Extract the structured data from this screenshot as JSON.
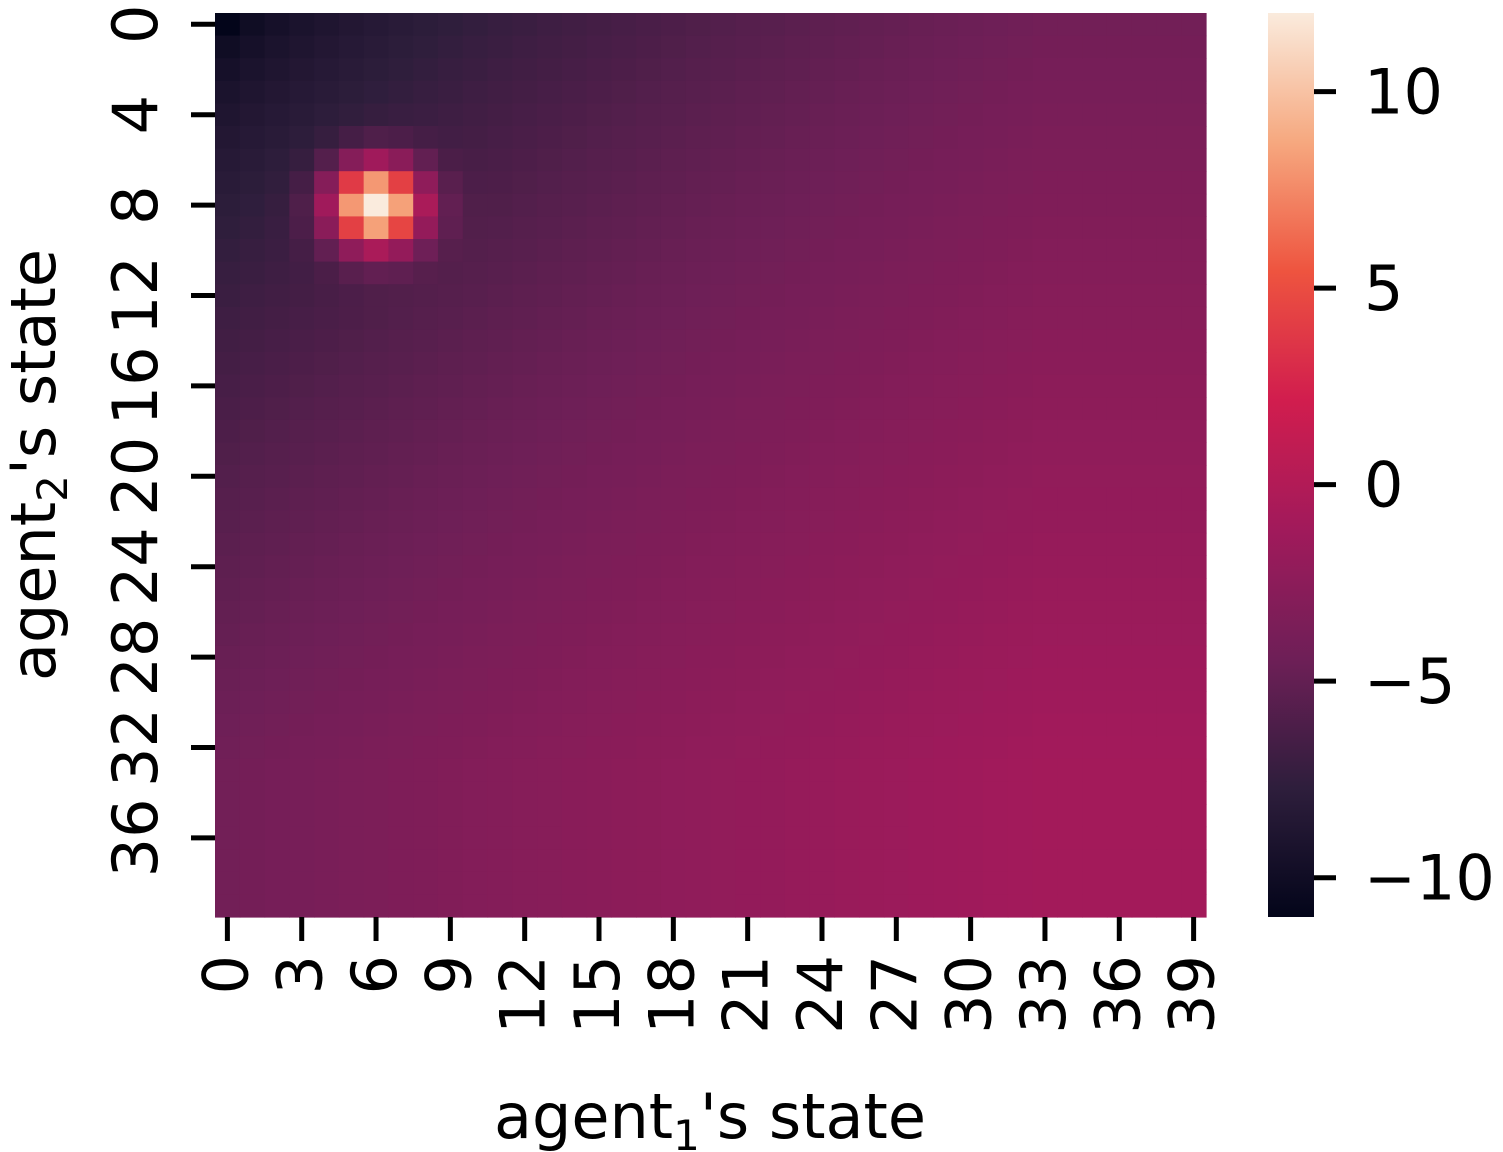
{
  "chart_data": {
    "type": "heatmap",
    "title": "",
    "xlabel": {
      "prefix": "agent",
      "subscript": "1",
      "suffix": "'s state"
    },
    "ylabel": {
      "prefix": "agent",
      "subscript": "2",
      "suffix": "'s state"
    },
    "x_range": [
      0,
      39
    ],
    "y_range": [
      0,
      39
    ],
    "x_ticks": [
      "0",
      "3",
      "6",
      "9",
      "12",
      "15",
      "18",
      "21",
      "24",
      "27",
      "30",
      "33",
      "36",
      "39"
    ],
    "y_ticks": [
      "0",
      "4",
      "8",
      "12",
      "16",
      "20",
      "24",
      "28",
      "32",
      "36"
    ],
    "colorbar": {
      "ticks": [
        "10",
        "5",
        "0",
        "−5",
        "−10"
      ],
      "tick_values": [
        10,
        5,
        0,
        -5,
        -10
      ],
      "vmin": -11,
      "vmax": 12,
      "colormap": "rocket",
      "color_stops": [
        "#03051a",
        "#2e1e3c",
        "#6e1f57",
        "#a11a5b",
        "#d11d4e",
        "#ee543f",
        "#f6a87f",
        "#faebdd"
      ]
    },
    "value_model": {
      "description_of_values": "Estimated cell values: smooth field from about -11 at (0,0) rising to about -1 toward (33,33); a sharp peak of about 12 centered at x=6, y=8.",
      "corner_min": -11,
      "far_max": -1,
      "peak": {
        "x": 6,
        "y": 8,
        "value": 12
      }
    }
  }
}
